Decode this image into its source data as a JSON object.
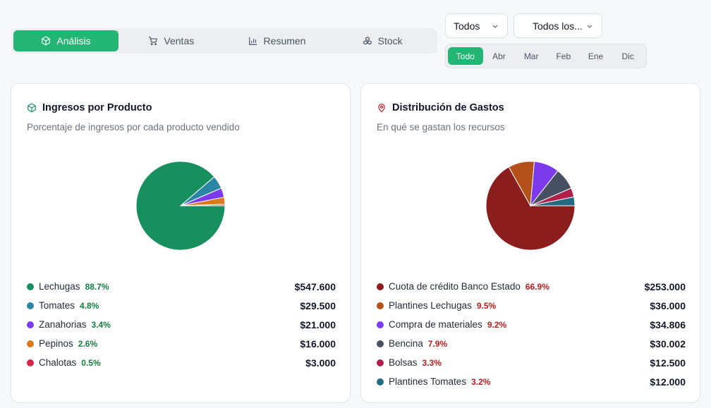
{
  "tabs": [
    {
      "label": "Análisis",
      "icon": "box-icon"
    },
    {
      "label": "Ventas",
      "icon": "cart-icon"
    },
    {
      "label": "Resumen",
      "icon": "bar-chart-icon"
    },
    {
      "label": "Stock",
      "icon": "boxes-icon"
    }
  ],
  "filters": {
    "category": "Todos",
    "product": "Todos los...",
    "months": [
      "Todo",
      "Abr",
      "Mar",
      "Feb",
      "Ene",
      "Dic"
    ]
  },
  "income_card": {
    "title": "Ingresos por Producto",
    "subtitle": "Porcentaje de ingresos por cada producto vendido",
    "items": [
      {
        "name": "Lechugas",
        "pct": "88.7%",
        "amount": "$547.600",
        "color": "#178f5f"
      },
      {
        "name": "Tomates",
        "pct": "4.8%",
        "amount": "$29.500",
        "color": "#2a86a4"
      },
      {
        "name": "Zanahorias",
        "pct": "3.4%",
        "amount": "$21.000",
        "color": "#7c3aed"
      },
      {
        "name": "Pepinos",
        "pct": "2.6%",
        "amount": "$16.000",
        "color": "#d97a1c"
      },
      {
        "name": "Chalotas",
        "pct": "0.5%",
        "amount": "$3.000",
        "color": "#d7264a"
      }
    ]
  },
  "expense_card": {
    "title": "Distribución de Gastos",
    "subtitle": "En qué se gastan los recursos",
    "items": [
      {
        "name": "Cuota de crédito Banco Estado",
        "pct": "66.9%",
        "amount": "$253.000",
        "color": "#8b1d1d"
      },
      {
        "name": "Plantines Lechugas",
        "pct": "9.5%",
        "amount": "$36.000",
        "color": "#b4501a"
      },
      {
        "name": "Compra de materiales",
        "pct": "9.2%",
        "amount": "$34.806",
        "color": "#7c3aed"
      },
      {
        "name": "Bencina",
        "pct": "7.9%",
        "amount": "$30.002",
        "color": "#475063"
      },
      {
        "name": "Bolsas",
        "pct": "3.3%",
        "amount": "$12.500",
        "color": "#b0214a"
      },
      {
        "name": "Plantines Tomates",
        "pct": "3.2%",
        "amount": "$12.000",
        "color": "#236b82"
      }
    ]
  },
  "chart_data": [
    {
      "type": "pie",
      "categories": [
        "Lechugas",
        "Tomates",
        "Zanahorias",
        "Pepinos",
        "Chalotas"
      ],
      "values": [
        88.7,
        4.8,
        3.4,
        2.6,
        0.5
      ]
    },
    {
      "type": "pie",
      "categories": [
        "Cuota de crédito Banco Estado",
        "Plantines Lechugas",
        "Compra de materiales",
        "Bencina",
        "Bolsas",
        "Plantines Tomates"
      ],
      "values": [
        66.9,
        9.5,
        9.2,
        7.9,
        3.3,
        3.2
      ]
    }
  ],
  "colors": {
    "accent": "#22b573"
  }
}
